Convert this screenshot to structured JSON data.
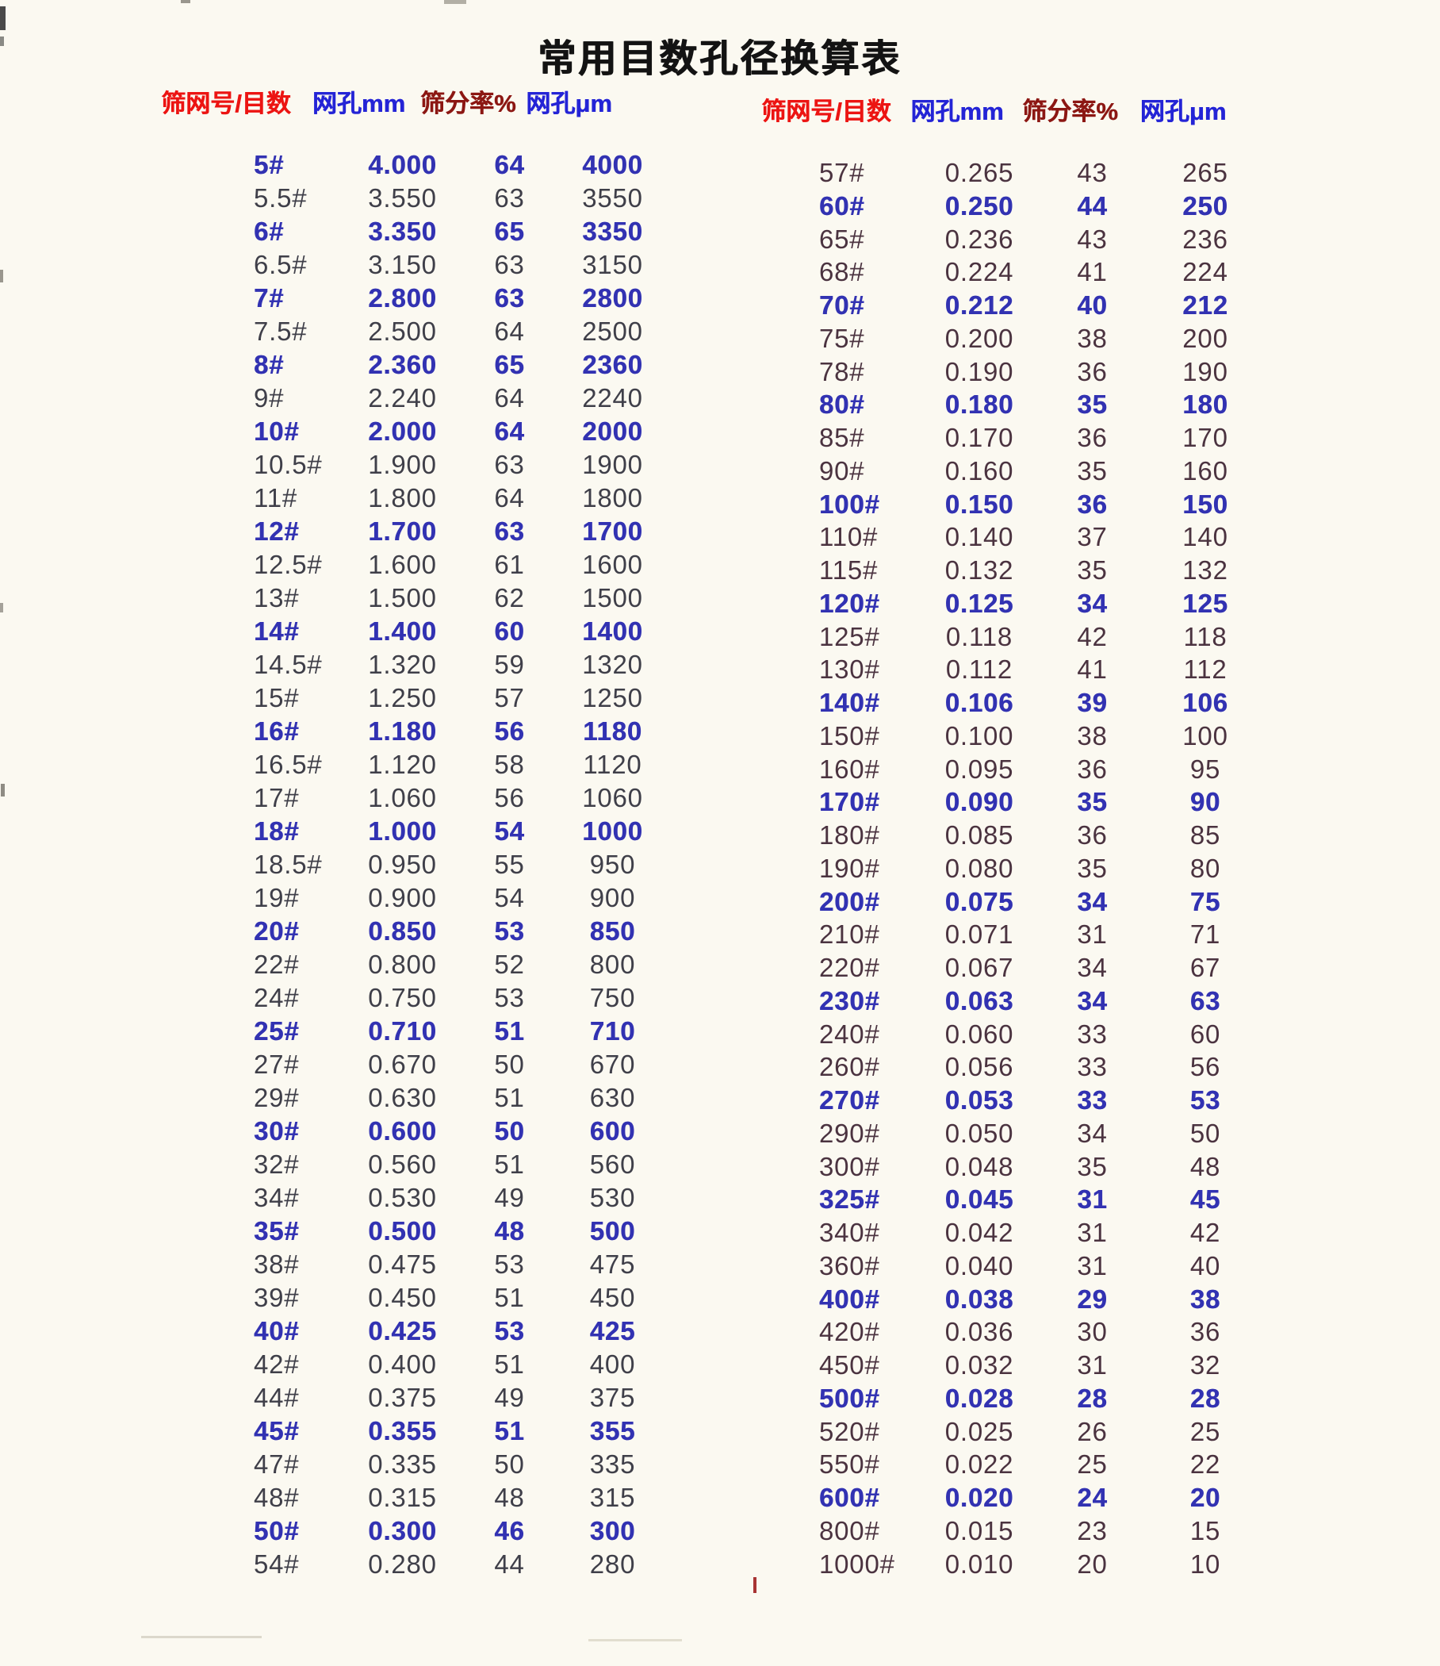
{
  "title": "常用目数孔径换算表",
  "columns": [
    "筛网号/目数",
    "网孔mm",
    "筛分率%",
    "网孔μm"
  ],
  "colors": {
    "bg": "#fbf9f1",
    "title": "#131313",
    "header-red": "#ec1412",
    "header-blue": "#2424d6",
    "header-maroon": "#8c1713",
    "row-highlight": "#3232b2",
    "row-dark-left": "#3f3f49",
    "row-dark-right": "#4b3340"
  },
  "left_table": {
    "rows": [
      {
        "mesh": "5#",
        "mm": "4.000",
        "rate": "64",
        "um": "4000",
        "hl": true
      },
      {
        "mesh": "5.5#",
        "mm": "3.550",
        "rate": "63",
        "um": "3550",
        "hl": false
      },
      {
        "mesh": "6#",
        "mm": "3.350",
        "rate": "65",
        "um": "3350",
        "hl": true
      },
      {
        "mesh": "6.5#",
        "mm": "3.150",
        "rate": "63",
        "um": "3150",
        "hl": false
      },
      {
        "mesh": "7#",
        "mm": "2.800",
        "rate": "63",
        "um": "2800",
        "hl": true
      },
      {
        "mesh": "7.5#",
        "mm": "2.500",
        "rate": "64",
        "um": "2500",
        "hl": false
      },
      {
        "mesh": "8#",
        "mm": "2.360",
        "rate": "65",
        "um": "2360",
        "hl": true
      },
      {
        "mesh": "9#",
        "mm": "2.240",
        "rate": "64",
        "um": "2240",
        "hl": false
      },
      {
        "mesh": "10#",
        "mm": "2.000",
        "rate": "64",
        "um": "2000",
        "hl": true
      },
      {
        "mesh": "10.5#",
        "mm": "1.900",
        "rate": "63",
        "um": "1900",
        "hl": false
      },
      {
        "mesh": "11#",
        "mm": "1.800",
        "rate": "64",
        "um": "1800",
        "hl": false
      },
      {
        "mesh": "12#",
        "mm": "1.700",
        "rate": "63",
        "um": "1700",
        "hl": true
      },
      {
        "mesh": "12.5#",
        "mm": "1.600",
        "rate": "61",
        "um": "1600",
        "hl": false
      },
      {
        "mesh": "13#",
        "mm": "1.500",
        "rate": "62",
        "um": "1500",
        "hl": false
      },
      {
        "mesh": "14#",
        "mm": "1.400",
        "rate": "60",
        "um": "1400",
        "hl": true
      },
      {
        "mesh": "14.5#",
        "mm": "1.320",
        "rate": "59",
        "um": "1320",
        "hl": false
      },
      {
        "mesh": "15#",
        "mm": "1.250",
        "rate": "57",
        "um": "1250",
        "hl": false
      },
      {
        "mesh": "16#",
        "mm": "1.180",
        "rate": "56",
        "um": "1180",
        "hl": true
      },
      {
        "mesh": "16.5#",
        "mm": "1.120",
        "rate": "58",
        "um": "1120",
        "hl": false
      },
      {
        "mesh": "17#",
        "mm": "1.060",
        "rate": "56",
        "um": "1060",
        "hl": false
      },
      {
        "mesh": "18#",
        "mm": "1.000",
        "rate": "54",
        "um": "1000",
        "hl": true
      },
      {
        "mesh": "18.5#",
        "mm": "0.950",
        "rate": "55",
        "um": "950",
        "hl": false
      },
      {
        "mesh": "19#",
        "mm": "0.900",
        "rate": "54",
        "um": "900",
        "hl": false
      },
      {
        "mesh": "20#",
        "mm": "0.850",
        "rate": "53",
        "um": "850",
        "hl": true
      },
      {
        "mesh": "22#",
        "mm": "0.800",
        "rate": "52",
        "um": "800",
        "hl": false
      },
      {
        "mesh": "24#",
        "mm": "0.750",
        "rate": "53",
        "um": "750",
        "hl": false
      },
      {
        "mesh": "25#",
        "mm": "0.710",
        "rate": "51",
        "um": "710",
        "hl": true
      },
      {
        "mesh": "27#",
        "mm": "0.670",
        "rate": "50",
        "um": "670",
        "hl": false
      },
      {
        "mesh": "29#",
        "mm": "0.630",
        "rate": "51",
        "um": "630",
        "hl": false
      },
      {
        "mesh": "30#",
        "mm": "0.600",
        "rate": "50",
        "um": "600",
        "hl": true
      },
      {
        "mesh": "32#",
        "mm": "0.560",
        "rate": "51",
        "um": "560",
        "hl": false
      },
      {
        "mesh": "34#",
        "mm": "0.530",
        "rate": "49",
        "um": "530",
        "hl": false
      },
      {
        "mesh": "35#",
        "mm": "0.500",
        "rate": "48",
        "um": "500",
        "hl": true
      },
      {
        "mesh": "38#",
        "mm": "0.475",
        "rate": "53",
        "um": "475",
        "hl": false
      },
      {
        "mesh": "39#",
        "mm": "0.450",
        "rate": "51",
        "um": "450",
        "hl": false
      },
      {
        "mesh": "40#",
        "mm": "0.425",
        "rate": "53",
        "um": "425",
        "hl": true
      },
      {
        "mesh": "42#",
        "mm": "0.400",
        "rate": "51",
        "um": "400",
        "hl": false
      },
      {
        "mesh": "44#",
        "mm": "0.375",
        "rate": "49",
        "um": "375",
        "hl": false
      },
      {
        "mesh": "45#",
        "mm": "0.355",
        "rate": "51",
        "um": "355",
        "hl": true
      },
      {
        "mesh": "47#",
        "mm": "0.335",
        "rate": "50",
        "um": "335",
        "hl": false
      },
      {
        "mesh": "48#",
        "mm": "0.315",
        "rate": "48",
        "um": "315",
        "hl": false
      },
      {
        "mesh": "50#",
        "mm": "0.300",
        "rate": "46",
        "um": "300",
        "hl": true
      },
      {
        "mesh": "54#",
        "mm": "0.280",
        "rate": "44",
        "um": "280",
        "hl": false
      }
    ]
  },
  "right_table": {
    "rows": [
      {
        "mesh": "57#",
        "mm": "0.265",
        "rate": "43",
        "um": "265",
        "hl": false
      },
      {
        "mesh": "60#",
        "mm": "0.250",
        "rate": "44",
        "um": "250",
        "hl": true
      },
      {
        "mesh": "65#",
        "mm": "0.236",
        "rate": "43",
        "um": "236",
        "hl": false
      },
      {
        "mesh": "68#",
        "mm": "0.224",
        "rate": "41",
        "um": "224",
        "hl": false
      },
      {
        "mesh": "70#",
        "mm": "0.212",
        "rate": "40",
        "um": "212",
        "hl": true
      },
      {
        "mesh": "75#",
        "mm": "0.200",
        "rate": "38",
        "um": "200",
        "hl": false
      },
      {
        "mesh": "78#",
        "mm": "0.190",
        "rate": "36",
        "um": "190",
        "hl": false
      },
      {
        "mesh": "80#",
        "mm": "0.180",
        "rate": "35",
        "um": "180",
        "hl": true
      },
      {
        "mesh": "85#",
        "mm": "0.170",
        "rate": "36",
        "um": "170",
        "hl": false
      },
      {
        "mesh": "90#",
        "mm": "0.160",
        "rate": "35",
        "um": "160",
        "hl": false
      },
      {
        "mesh": "100#",
        "mm": "0.150",
        "rate": "36",
        "um": "150",
        "hl": true
      },
      {
        "mesh": "110#",
        "mm": "0.140",
        "rate": "37",
        "um": "140",
        "hl": false
      },
      {
        "mesh": "115#",
        "mm": "0.132",
        "rate": "35",
        "um": "132",
        "hl": false
      },
      {
        "mesh": "120#",
        "mm": "0.125",
        "rate": "34",
        "um": "125",
        "hl": true
      },
      {
        "mesh": "125#",
        "mm": "0.118",
        "rate": "42",
        "um": "118",
        "hl": false
      },
      {
        "mesh": "130#",
        "mm": "0.112",
        "rate": "41",
        "um": "112",
        "hl": false
      },
      {
        "mesh": "140#",
        "mm": "0.106",
        "rate": "39",
        "um": "106",
        "hl": true
      },
      {
        "mesh": "150#",
        "mm": "0.100",
        "rate": "38",
        "um": "100",
        "hl": false
      },
      {
        "mesh": "160#",
        "mm": "0.095",
        "rate": "36",
        "um": "95",
        "hl": false
      },
      {
        "mesh": "170#",
        "mm": "0.090",
        "rate": "35",
        "um": "90",
        "hl": true
      },
      {
        "mesh": "180#",
        "mm": "0.085",
        "rate": "36",
        "um": "85",
        "hl": false
      },
      {
        "mesh": "190#",
        "mm": "0.080",
        "rate": "35",
        "um": "80",
        "hl": false
      },
      {
        "mesh": "200#",
        "mm": "0.075",
        "rate": "34",
        "um": "75",
        "hl": true
      },
      {
        "mesh": "210#",
        "mm": "0.071",
        "rate": "31",
        "um": "71",
        "hl": false
      },
      {
        "mesh": "220#",
        "mm": "0.067",
        "rate": "34",
        "um": "67",
        "hl": false
      },
      {
        "mesh": "230#",
        "mm": "0.063",
        "rate": "34",
        "um": "63",
        "hl": true
      },
      {
        "mesh": "240#",
        "mm": "0.060",
        "rate": "33",
        "um": "60",
        "hl": false
      },
      {
        "mesh": "260#",
        "mm": "0.056",
        "rate": "33",
        "um": "56",
        "hl": false
      },
      {
        "mesh": "270#",
        "mm": "0.053",
        "rate": "33",
        "um": "53",
        "hl": true
      },
      {
        "mesh": "290#",
        "mm": "0.050",
        "rate": "34",
        "um": "50",
        "hl": false
      },
      {
        "mesh": "300#",
        "mm": "0.048",
        "rate": "35",
        "um": "48",
        "hl": false
      },
      {
        "mesh": "325#",
        "mm": "0.045",
        "rate": "31",
        "um": "45",
        "hl": true
      },
      {
        "mesh": "340#",
        "mm": "0.042",
        "rate": "31",
        "um": "42",
        "hl": false
      },
      {
        "mesh": "360#",
        "mm": "0.040",
        "rate": "31",
        "um": "40",
        "hl": false
      },
      {
        "mesh": "400#",
        "mm": "0.038",
        "rate": "29",
        "um": "38",
        "hl": true
      },
      {
        "mesh": "420#",
        "mm": "0.036",
        "rate": "30",
        "um": "36",
        "hl": false
      },
      {
        "mesh": "450#",
        "mm": "0.032",
        "rate": "31",
        "um": "32",
        "hl": false
      },
      {
        "mesh": "500#",
        "mm": "0.028",
        "rate": "28",
        "um": "28",
        "hl": true
      },
      {
        "mesh": "520#",
        "mm": "0.025",
        "rate": "26",
        "um": "25",
        "hl": false
      },
      {
        "mesh": "550#",
        "mm": "0.022",
        "rate": "25",
        "um": "22",
        "hl": false
      },
      {
        "mesh": "600#",
        "mm": "0.020",
        "rate": "24",
        "um": "20",
        "hl": true
      },
      {
        "mesh": "800#",
        "mm": "0.015",
        "rate": "23",
        "um": "15",
        "hl": false
      },
      {
        "mesh": "1000#",
        "mm": "0.010",
        "rate": "20",
        "um": "10",
        "hl": false
      }
    ]
  }
}
